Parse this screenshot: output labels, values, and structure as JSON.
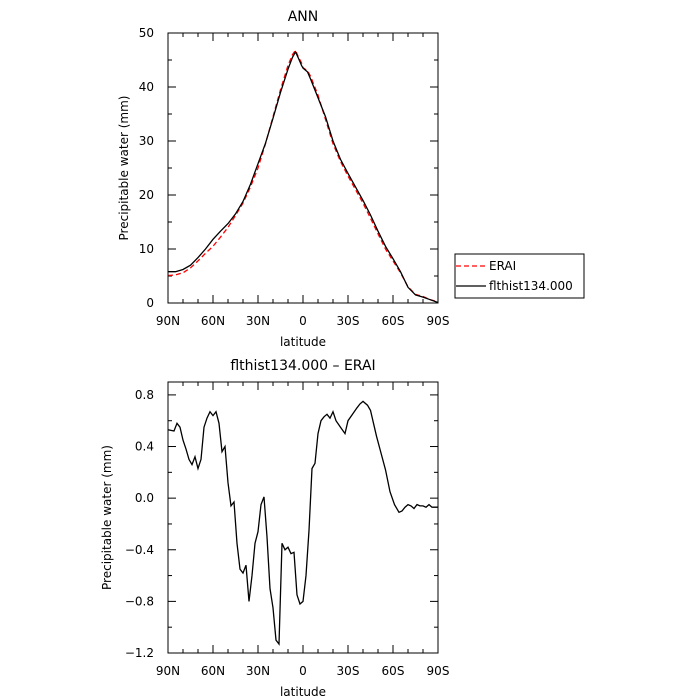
{
  "chart_data": [
    {
      "type": "line",
      "title": "ANN",
      "xlabel": "latitude",
      "ylabel": "Precipitable water (mm)",
      "xlim": [
        90,
        -90
      ],
      "ylim": [
        0,
        50
      ],
      "xticks": [
        "90N",
        "60N",
        "30N",
        "0",
        "30S",
        "60S",
        "90S"
      ],
      "xtick_values": [
        90,
        60,
        30,
        0,
        -30,
        -60,
        -90
      ],
      "yticks": [
        0,
        10,
        20,
        30,
        40,
        50
      ],
      "legend_position": "right",
      "series": [
        {
          "name": "ERAI",
          "color": "#ff0000",
          "dash": "dashed",
          "x": [
            90,
            85,
            80,
            75,
            70,
            65,
            60,
            55,
            50,
            45,
            40,
            35,
            30,
            25,
            20,
            15,
            10,
            7,
            5,
            3,
            1,
            0,
            -3,
            -5,
            -10,
            -15,
            -20,
            -25,
            -30,
            -35,
            -40,
            -45,
            -50,
            -55,
            -60,
            -65,
            -70,
            -75,
            -80,
            -85,
            -90
          ],
          "y": [
            5.1,
            5.2,
            5.6,
            6.5,
            7.8,
            9.2,
            10.5,
            12.2,
            14.0,
            16.2,
            18.5,
            21.5,
            25.0,
            29.5,
            34.5,
            39.5,
            44.0,
            46.0,
            46.8,
            45.5,
            44.5,
            43.6,
            43.0,
            42.0,
            38.5,
            34.0,
            29.5,
            26.2,
            23.5,
            21.0,
            18.5,
            15.7,
            12.8,
            10.0,
            7.8,
            5.6,
            3.0,
            1.6,
            1.2,
            0.6,
            0.2
          ]
        },
        {
          "name": "flthist134.000",
          "color": "#000000",
          "dash": "solid",
          "x": [
            90,
            85,
            80,
            75,
            70,
            65,
            60,
            55,
            50,
            45,
            40,
            35,
            30,
            25,
            20,
            15,
            10,
            7,
            5,
            3,
            1,
            0,
            -3,
            -5,
            -10,
            -15,
            -20,
            -25,
            -30,
            -35,
            -40,
            -45,
            -50,
            -55,
            -60,
            -65,
            -70,
            -75,
            -80,
            -85,
            -90
          ],
          "y": [
            5.8,
            5.8,
            6.2,
            7.0,
            8.4,
            10.0,
            11.8,
            13.3,
            14.7,
            16.5,
            18.8,
            22.0,
            25.8,
            29.6,
            34.2,
            39.0,
            43.3,
            45.5,
            46.5,
            45.3,
            44.0,
            43.5,
            42.8,
            41.5,
            38.0,
            34.5,
            30.0,
            26.6,
            24.0,
            21.5,
            19.0,
            16.3,
            13.3,
            10.5,
            8.2,
            5.8,
            2.9,
            1.5,
            1.1,
            0.6,
            0.1
          ]
        }
      ]
    },
    {
      "type": "line",
      "title": "flthist134.000 – ERAI",
      "xlabel": "latitude",
      "ylabel": "Precipitable water (mm)",
      "xlim": [
        90,
        -90
      ],
      "ylim": [
        -1.2,
        0.9
      ],
      "xticks": [
        "90N",
        "60N",
        "30N",
        "0",
        "30S",
        "60S",
        "90S"
      ],
      "xtick_values": [
        90,
        60,
        30,
        0,
        -30,
        -60,
        -90
      ],
      "yticks": [
        "0.8",
        "0.4",
        "0.0",
        "-0.4",
        "-0.8",
        "-1.2"
      ],
      "ytick_values": [
        0.8,
        0.4,
        0.0,
        -0.4,
        -0.8,
        -1.2
      ],
      "series": [
        {
          "name": "",
          "color": "#000000",
          "dash": "solid",
          "x": [
            90,
            86,
            84,
            82,
            80,
            78,
            76,
            74,
            72,
            70,
            68,
            66,
            64,
            62,
            60,
            58,
            56,
            54,
            52,
            50,
            48,
            46,
            44,
            42,
            40,
            38,
            36,
            34,
            32,
            30,
            28,
            26,
            24,
            22,
            20,
            18,
            16,
            14,
            12,
            10,
            8,
            6,
            4,
            2,
            0,
            -2,
            -4,
            -6,
            -8,
            -10,
            -12,
            -14,
            -16,
            -18,
            -20,
            -22,
            -25,
            -28,
            -30,
            -33,
            -36,
            -38,
            -40,
            -43,
            -45,
            -47,
            -49,
            -52,
            -55,
            -58,
            -61,
            -64,
            -66,
            -68,
            -70,
            -72,
            -74,
            -76,
            -78,
            -80,
            -82,
            -84,
            -86,
            -88,
            -90
          ],
          "y": [
            0.53,
            0.52,
            0.58,
            0.55,
            0.45,
            0.38,
            0.3,
            0.26,
            0.32,
            0.23,
            0.3,
            0.55,
            0.62,
            0.67,
            0.64,
            0.67,
            0.58,
            0.36,
            0.4,
            0.12,
            -0.06,
            -0.03,
            -0.35,
            -0.55,
            -0.58,
            -0.52,
            -0.8,
            -0.6,
            -0.35,
            -0.26,
            -0.05,
            0.01,
            -0.3,
            -0.7,
            -0.85,
            -1.1,
            -1.13,
            -0.35,
            -0.4,
            -0.38,
            -0.43,
            -0.42,
            -0.75,
            -0.82,
            -0.8,
            -0.6,
            -0.25,
            0.23,
            0.27,
            0.5,
            0.6,
            0.63,
            0.65,
            0.62,
            0.67,
            0.6,
            0.55,
            0.5,
            0.6,
            0.65,
            0.7,
            0.73,
            0.75,
            0.72,
            0.68,
            0.58,
            0.48,
            0.35,
            0.22,
            0.05,
            -0.05,
            -0.11,
            -0.1,
            -0.07,
            -0.05,
            -0.06,
            -0.08,
            -0.05,
            -0.06,
            -0.06,
            -0.07,
            -0.05,
            -0.07,
            -0.07,
            -0.07
          ]
        }
      ]
    }
  ]
}
